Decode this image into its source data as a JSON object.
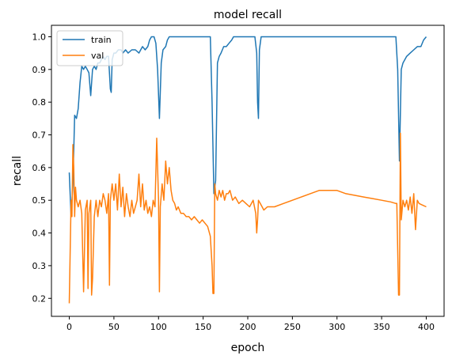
{
  "chart_data": {
    "type": "line",
    "title": "model recall",
    "xlabel": "epoch",
    "ylabel": "recall",
    "xlim": [
      -20,
      420
    ],
    "ylim": [
      0.145,
      1.035
    ],
    "xticks": [
      0,
      50,
      100,
      150,
      200,
      250,
      300,
      350,
      400
    ],
    "yticks": [
      0.2,
      0.3,
      0.4,
      0.5,
      0.6,
      0.7,
      0.8,
      0.9,
      1.0
    ],
    "grid": false,
    "legend_position": "upper-left",
    "series": [
      {
        "name": "train",
        "color": "#1f77b4",
        "points": [
          [
            0,
            0.585
          ],
          [
            2,
            0.45
          ],
          [
            4,
            0.55
          ],
          [
            6,
            0.76
          ],
          [
            8,
            0.75
          ],
          [
            10,
            0.78
          ],
          [
            12,
            0.86
          ],
          [
            14,
            0.91
          ],
          [
            16,
            0.9
          ],
          [
            18,
            0.91
          ],
          [
            20,
            0.9
          ],
          [
            22,
            0.89
          ],
          [
            24,
            0.82
          ],
          [
            26,
            0.9
          ],
          [
            28,
            0.91
          ],
          [
            30,
            0.9
          ],
          [
            32,
            0.92
          ],
          [
            34,
            0.92
          ],
          [
            36,
            0.93
          ],
          [
            38,
            0.94
          ],
          [
            40,
            0.93
          ],
          [
            42,
            0.94
          ],
          [
            44,
            0.94
          ],
          [
            46,
            0.84
          ],
          [
            47,
            0.83
          ],
          [
            48,
            0.93
          ],
          [
            50,
            0.95
          ],
          [
            52,
            0.95
          ],
          [
            55,
            0.96
          ],
          [
            58,
            0.96
          ],
          [
            60,
            0.95
          ],
          [
            63,
            0.96
          ],
          [
            66,
            0.95
          ],
          [
            70,
            0.96
          ],
          [
            74,
            0.96
          ],
          [
            78,
            0.95
          ],
          [
            82,
            0.97
          ],
          [
            85,
            0.96
          ],
          [
            88,
            0.97
          ],
          [
            90,
            0.99
          ],
          [
            92,
            1.0
          ],
          [
            95,
            1.0
          ],
          [
            97,
            0.98
          ],
          [
            99,
            0.9
          ],
          [
            101,
            0.75
          ],
          [
            103,
            0.92
          ],
          [
            105,
            0.96
          ],
          [
            108,
            0.97
          ],
          [
            110,
            0.99
          ],
          [
            112,
            1.0
          ],
          [
            120,
            1.0
          ],
          [
            130,
            1.0
          ],
          [
            140,
            1.0
          ],
          [
            150,
            1.0
          ],
          [
            158,
            1.0
          ],
          [
            160,
            0.8
          ],
          [
            162,
            0.52
          ],
          [
            164,
            0.56
          ],
          [
            166,
            0.92
          ],
          [
            168,
            0.94
          ],
          [
            170,
            0.95
          ],
          [
            173,
            0.97
          ],
          [
            176,
            0.97
          ],
          [
            179,
            0.98
          ],
          [
            182,
            0.99
          ],
          [
            184,
            1.0
          ],
          [
            190,
            1.0
          ],
          [
            200,
            1.0
          ],
          [
            208,
            1.0
          ],
          [
            210,
            0.95
          ],
          [
            211,
            0.8
          ],
          [
            212,
            0.75
          ],
          [
            213,
            0.96
          ],
          [
            215,
            1.0
          ],
          [
            230,
            1.0
          ],
          [
            250,
            1.0
          ],
          [
            270,
            1.0
          ],
          [
            300,
            1.0
          ],
          [
            330,
            1.0
          ],
          [
            360,
            1.0
          ],
          [
            366,
            1.0
          ],
          [
            368,
            0.9
          ],
          [
            370,
            0.62
          ],
          [
            372,
            0.9
          ],
          [
            374,
            0.92
          ],
          [
            378,
            0.94
          ],
          [
            382,
            0.95
          ],
          [
            386,
            0.96
          ],
          [
            390,
            0.97
          ],
          [
            394,
            0.97
          ],
          [
            397,
            0.99
          ],
          [
            400,
            1.0
          ]
        ]
      },
      {
        "name": "val",
        "color": "#ff7f0e",
        "points": [
          [
            0,
            0.185
          ],
          [
            2,
            0.5
          ],
          [
            3,
            0.45
          ],
          [
            4,
            0.67
          ],
          [
            5,
            0.6
          ],
          [
            6,
            0.45
          ],
          [
            7,
            0.54
          ],
          [
            8,
            0.5
          ],
          [
            10,
            0.48
          ],
          [
            12,
            0.5
          ],
          [
            14,
            0.46
          ],
          [
            16,
            0.22
          ],
          [
            18,
            0.47
          ],
          [
            20,
            0.5
          ],
          [
            21,
            0.23
          ],
          [
            22,
            0.46
          ],
          [
            24,
            0.5
          ],
          [
            25,
            0.21
          ],
          [
            26,
            0.26
          ],
          [
            28,
            0.45
          ],
          [
            30,
            0.5
          ],
          [
            32,
            0.45
          ],
          [
            34,
            0.5
          ],
          [
            36,
            0.48
          ],
          [
            38,
            0.52
          ],
          [
            40,
            0.5
          ],
          [
            42,
            0.46
          ],
          [
            44,
            0.52
          ],
          [
            45,
            0.24
          ],
          [
            46,
            0.5
          ],
          [
            48,
            0.55
          ],
          [
            50,
            0.5
          ],
          [
            52,
            0.55
          ],
          [
            54,
            0.47
          ],
          [
            56,
            0.58
          ],
          [
            58,
            0.48
          ],
          [
            60,
            0.54
          ],
          [
            62,
            0.45
          ],
          [
            64,
            0.52
          ],
          [
            66,
            0.48
          ],
          [
            68,
            0.45
          ],
          [
            70,
            0.5
          ],
          [
            72,
            0.46
          ],
          [
            74,
            0.48
          ],
          [
            76,
            0.5
          ],
          [
            78,
            0.58
          ],
          [
            80,
            0.48
          ],
          [
            82,
            0.55
          ],
          [
            84,
            0.47
          ],
          [
            86,
            0.5
          ],
          [
            88,
            0.46
          ],
          [
            90,
            0.48
          ],
          [
            92,
            0.45
          ],
          [
            94,
            0.5
          ],
          [
            96,
            0.48
          ],
          [
            98,
            0.69
          ],
          [
            100,
            0.5
          ],
          [
            101,
            0.22
          ],
          [
            102,
            0.48
          ],
          [
            104,
            0.55
          ],
          [
            106,
            0.5
          ],
          [
            108,
            0.62
          ],
          [
            110,
            0.55
          ],
          [
            112,
            0.6
          ],
          [
            114,
            0.53
          ],
          [
            116,
            0.5
          ],
          [
            118,
            0.49
          ],
          [
            120,
            0.47
          ],
          [
            122,
            0.48
          ],
          [
            125,
            0.46
          ],
          [
            128,
            0.46
          ],
          [
            131,
            0.45
          ],
          [
            134,
            0.45
          ],
          [
            137,
            0.44
          ],
          [
            140,
            0.45
          ],
          [
            143,
            0.44
          ],
          [
            146,
            0.43
          ],
          [
            149,
            0.44
          ],
          [
            152,
            0.43
          ],
          [
            155,
            0.42
          ],
          [
            158,
            0.39
          ],
          [
            160,
            0.3
          ],
          [
            161,
            0.215
          ],
          [
            162,
            0.215
          ],
          [
            163,
            0.55
          ],
          [
            164,
            0.52
          ],
          [
            166,
            0.5
          ],
          [
            168,
            0.53
          ],
          [
            170,
            0.51
          ],
          [
            172,
            0.53
          ],
          [
            174,
            0.5
          ],
          [
            176,
            0.52
          ],
          [
            178,
            0.52
          ],
          [
            180,
            0.53
          ],
          [
            183,
            0.5
          ],
          [
            186,
            0.51
          ],
          [
            190,
            0.49
          ],
          [
            194,
            0.5
          ],
          [
            198,
            0.49
          ],
          [
            202,
            0.48
          ],
          [
            206,
            0.5
          ],
          [
            209,
            0.46
          ],
          [
            210,
            0.4
          ],
          [
            211,
            0.44
          ],
          [
            212,
            0.5
          ],
          [
            214,
            0.49
          ],
          [
            218,
            0.47
          ],
          [
            222,
            0.48
          ],
          [
            230,
            0.48
          ],
          [
            240,
            0.49
          ],
          [
            250,
            0.5
          ],
          [
            260,
            0.51
          ],
          [
            270,
            0.52
          ],
          [
            280,
            0.53
          ],
          [
            290,
            0.53
          ],
          [
            300,
            0.53
          ],
          [
            310,
            0.52
          ],
          [
            320,
            0.515
          ],
          [
            330,
            0.51
          ],
          [
            340,
            0.505
          ],
          [
            350,
            0.5
          ],
          [
            360,
            0.495
          ],
          [
            366,
            0.49
          ],
          [
            367,
            0.49
          ],
          [
            369,
            0.21
          ],
          [
            370,
            0.21
          ],
          [
            371,
            0.705
          ],
          [
            372,
            0.44
          ],
          [
            374,
            0.5
          ],
          [
            376,
            0.48
          ],
          [
            378,
            0.5
          ],
          [
            380,
            0.47
          ],
          [
            382,
            0.51
          ],
          [
            384,
            0.46
          ],
          [
            386,
            0.52
          ],
          [
            388,
            0.41
          ],
          [
            390,
            0.5
          ],
          [
            392,
            0.49
          ],
          [
            396,
            0.485
          ],
          [
            400,
            0.48
          ]
        ]
      }
    ]
  }
}
